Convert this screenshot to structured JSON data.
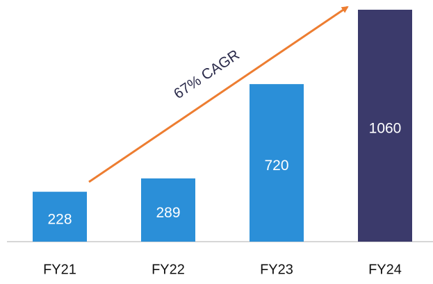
{
  "chart_data": {
    "type": "bar",
    "categories": [
      "FY21",
      "FY22",
      "FY23",
      "FY24"
    ],
    "values": [
      228,
      289,
      720,
      1060
    ],
    "colors": [
      "#2b8fd8",
      "#2b8fd8",
      "#2b8fd8",
      "#3b3a6b"
    ],
    "annotation": "67% CAGR"
  }
}
